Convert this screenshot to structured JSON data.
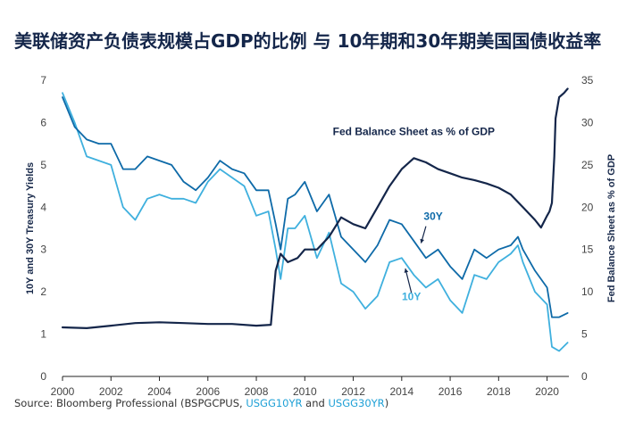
{
  "chart_data": {
    "type": "line",
    "title": "美联储资产负债表规模占GDP的比例 与 10年期和30年期美国国债收益率",
    "xlabel": "",
    "ylabel_left": "10Y and 30Y Treasury Yields",
    "ylabel_right": "Fed Balance Sheet as % of GDP",
    "x_ticks": [
      "2000",
      "2002",
      "2004",
      "2006",
      "2008",
      "2010",
      "2012",
      "2014",
      "2016",
      "2018",
      "2020"
    ],
    "y_left_ticks": [
      "0",
      "1",
      "2",
      "3",
      "4",
      "5",
      "6",
      "7"
    ],
    "y_right_ticks": [
      "0",
      "5",
      "10",
      "15",
      "20",
      "25",
      "30",
      "35"
    ],
    "xlim": [
      2000,
      2020.9
    ],
    "ylim_left": [
      0,
      7
    ],
    "ylim_right": [
      0,
      35
    ],
    "grid": false,
    "series": [
      {
        "name": "Fed Balance Sheet as % of GDP",
        "axis": "right",
        "color": "#14264a",
        "x": [
          2000,
          2001,
          2002,
          2003,
          2004,
          2005,
          2006,
          2007,
          2008.0,
          2008.6,
          2008.8,
          2009.0,
          2009.3,
          2009.7,
          2010.0,
          2010.5,
          2011.0,
          2011.5,
          2012.0,
          2012.5,
          2013.0,
          2013.5,
          2014.0,
          2014.5,
          2015.0,
          2015.5,
          2016.0,
          2016.5,
          2017.0,
          2017.5,
          2018.0,
          2018.5,
          2019.0,
          2019.5,
          2019.75,
          2020.0,
          2020.1,
          2020.2,
          2020.3,
          2020.35,
          2020.5,
          2020.7,
          2020.85
        ],
        "values": [
          5.8,
          5.7,
          6.0,
          6.3,
          6.4,
          6.3,
          6.2,
          6.2,
          6.0,
          6.1,
          12.5,
          14.5,
          13.5,
          14.0,
          15.0,
          15.0,
          16.5,
          18.8,
          18.0,
          17.5,
          20.0,
          22.5,
          24.5,
          25.8,
          25.3,
          24.5,
          24.0,
          23.5,
          23.2,
          22.8,
          22.3,
          21.5,
          20.0,
          18.5,
          17.6,
          19.0,
          19.5,
          20.5,
          26.0,
          30.5,
          33.0,
          33.5,
          34.0
        ]
      },
      {
        "name": "30Y",
        "axis": "left",
        "color": "#0e6aa8",
        "x": [
          2000,
          2000.5,
          2001,
          2001.5,
          2002,
          2002.5,
          2003,
          2003.5,
          2004,
          2004.5,
          2005,
          2005.5,
          2006,
          2006.5,
          2007,
          2007.5,
          2008,
          2008.5,
          2008.8,
          2009.0,
          2009.3,
          2009.6,
          2010,
          2010.5,
          2011,
          2011.5,
          2012,
          2012.5,
          2013,
          2013.5,
          2014,
          2014.5,
          2015,
          2015.5,
          2016,
          2016.5,
          2017,
          2017.5,
          2018,
          2018.5,
          2018.8,
          2019,
          2019.5,
          2020,
          2020.2,
          2020.5,
          2020.85
        ],
        "values": [
          6.6,
          5.9,
          5.6,
          5.5,
          5.5,
          4.9,
          4.9,
          5.2,
          5.1,
          5.0,
          4.6,
          4.4,
          4.7,
          5.1,
          4.9,
          4.8,
          4.4,
          4.4,
          3.6,
          3.0,
          4.2,
          4.3,
          4.6,
          3.9,
          4.3,
          3.3,
          3.0,
          2.7,
          3.1,
          3.7,
          3.6,
          3.2,
          2.8,
          3.0,
          2.6,
          2.3,
          3.0,
          2.8,
          3.0,
          3.1,
          3.3,
          3.0,
          2.5,
          2.1,
          1.4,
          1.4,
          1.5
        ]
      },
      {
        "name": "10Y",
        "axis": "left",
        "color": "#3fb0de",
        "x": [
          2000,
          2000.5,
          2001,
          2001.5,
          2002,
          2002.5,
          2003,
          2003.5,
          2004,
          2004.5,
          2005,
          2005.5,
          2006,
          2006.5,
          2007,
          2007.5,
          2008,
          2008.5,
          2008.8,
          2009.0,
          2009.3,
          2009.6,
          2010,
          2010.5,
          2011,
          2011.5,
          2012,
          2012.5,
          2013,
          2013.5,
          2014,
          2014.5,
          2015,
          2015.5,
          2016,
          2016.5,
          2017,
          2017.5,
          2018,
          2018.5,
          2018.8,
          2019,
          2019.5,
          2020,
          2020.2,
          2020.5,
          2020.85
        ],
        "values": [
          6.7,
          6.0,
          5.2,
          5.1,
          5.0,
          4.0,
          3.7,
          4.2,
          4.3,
          4.2,
          4.2,
          4.1,
          4.6,
          4.9,
          4.7,
          4.5,
          3.8,
          3.9,
          3.0,
          2.3,
          3.5,
          3.5,
          3.8,
          2.8,
          3.4,
          2.2,
          2.0,
          1.6,
          1.9,
          2.7,
          2.8,
          2.4,
          2.1,
          2.3,
          1.8,
          1.5,
          2.4,
          2.3,
          2.7,
          2.9,
          3.1,
          2.7,
          2.0,
          1.7,
          0.7,
          0.6,
          0.8
        ]
      }
    ],
    "annotations": [
      {
        "text": "Fed Balance Sheet as % of GDP",
        "x": 2014.5,
        "y_right": 28.5,
        "color": "#14264a"
      },
      {
        "text": "30Y",
        "x": 2015.3,
        "y_left": 3.7,
        "color": "#0e6aa8"
      },
      {
        "text": "10Y",
        "x": 2014.4,
        "y_left": 1.8,
        "color": "#3fb0de"
      }
    ]
  },
  "source": {
    "prefix": "Source: Bloomberg Professional (BSPGCPUS, ",
    "link1": "USGG10YR",
    "mid": " and ",
    "link2": "USGG30YR",
    "suffix": ")"
  }
}
